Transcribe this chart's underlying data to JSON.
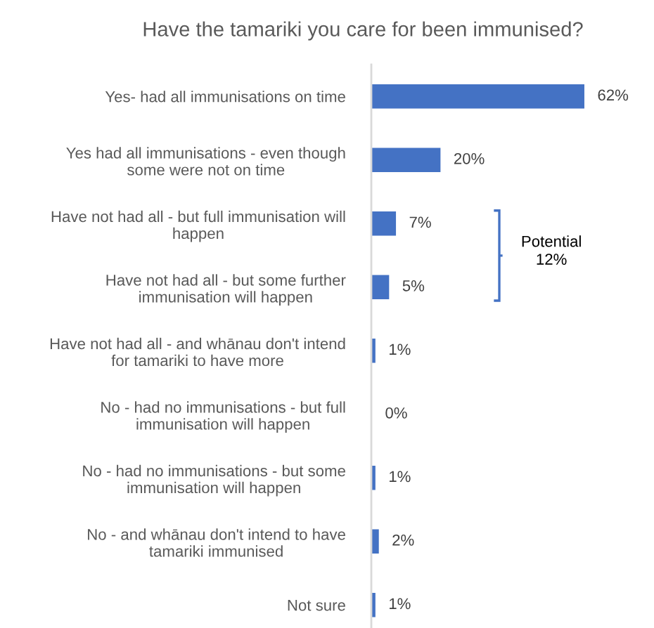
{
  "chart_data": {
    "type": "bar",
    "orientation": "horizontal",
    "title": "Have the tamariki you care for been immunised?",
    "categories": [
      "Yes- had all immunisations on time",
      "Yes had all immunisations - even though\nsome were not on time",
      "Have not had all - but full immunisation will\nhappen",
      "Have not had all - but some further\nimmunisation will happen",
      "Have not had all - and whānau don't intend\nfor tamariki to have more",
      "No - had no immunisations - but full\nimmunisation will happen",
      "No - had no immunisations - but some\nimmunisation will happen",
      "No - and whānau don't intend to have\ntamariki immunised",
      "Not sure"
    ],
    "values": [
      62,
      20,
      7,
      5,
      1,
      0,
      1,
      2,
      1
    ],
    "value_labels": [
      "62%",
      "20%",
      "7%",
      "5%",
      "1%",
      "0%",
      "1%",
      "2%",
      "1%"
    ],
    "color": "#4472c4",
    "tick_labels": "y",
    "annotations": [
      "Potential\n12%"
    ]
  }
}
